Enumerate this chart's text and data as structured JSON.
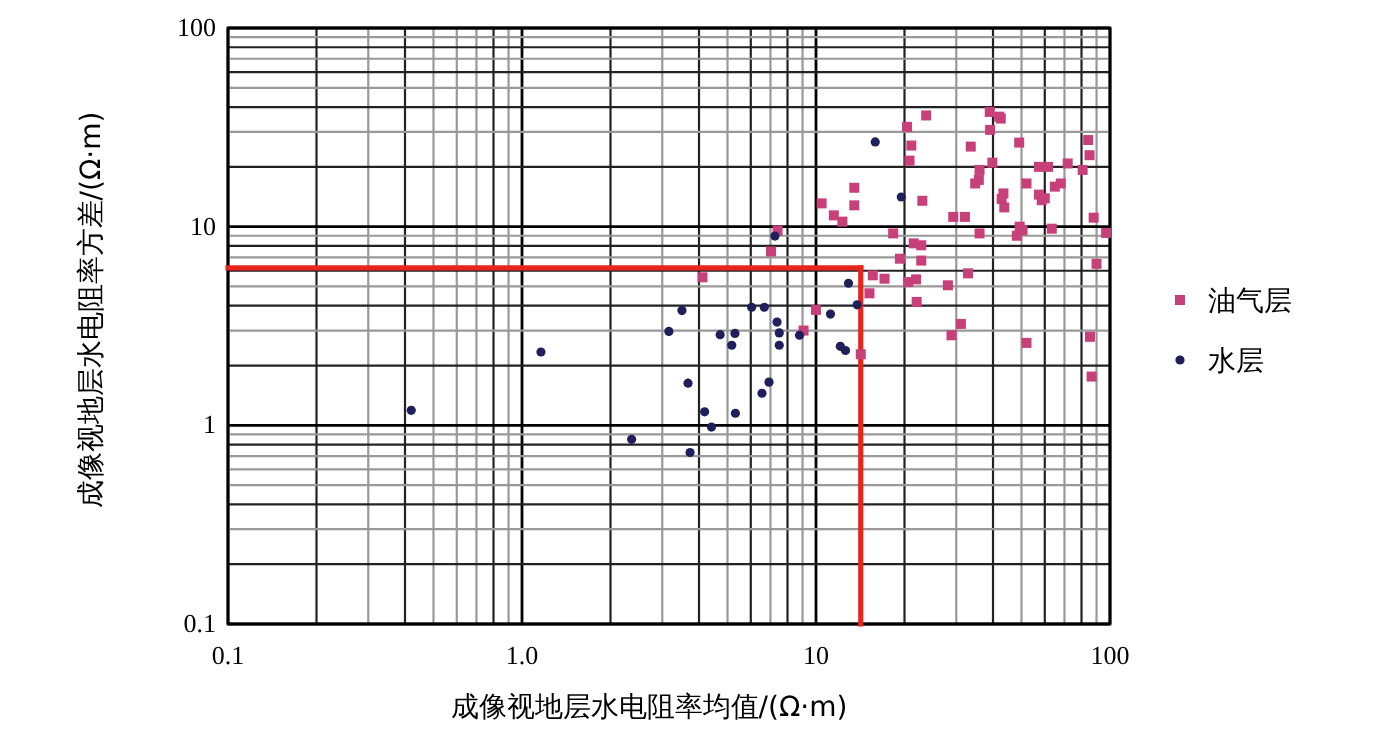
{
  "chart_data": {
    "type": "scatter",
    "xlabel": "成像视地层水电阻率均值/(Ω·m)",
    "ylabel": "成像视地层水电阻率方差/(Ω·m)",
    "log": "xy",
    "grid": true,
    "legend": "right",
    "xlim": [
      0.1,
      100
    ],
    "ylim": [
      0.1,
      100
    ],
    "xticks": [
      0.1,
      {
        "value": 1,
        "label": "1.0"
      },
      10,
      100
    ],
    "yticks": [
      0.1,
      1,
      10,
      100
    ],
    "ref_lines": [
      {
        "axis": "y",
        "value": 6.2,
        "color": "#e8251a"
      },
      {
        "axis": "x",
        "value": 14.2,
        "color": "#e8251a"
      }
    ],
    "series": [
      {
        "name": "油气层",
        "color": "#c8407a",
        "marker": "square",
        "x": [
          4.11,
          7.03,
          7.4,
          9.07,
          10,
          10.45,
          11.5,
          12.3,
          13.5,
          13.5,
          14.2,
          15.2,
          15.6,
          17.1,
          18.3,
          19.3,
          20.4,
          20.8,
          21.1,
          20.6,
          21.5,
          21.9,
          22,
          22.8,
          22.8,
          23,
          23.7,
          28.1,
          28.9,
          29.3,
          31.1,
          32.1,
          32.9,
          33.6,
          34.8,
          35.8,
          36,
          36,
          39,
          39.1,
          39.8,
          42,
          42.5,
          42.8,
          43.4,
          43.7,
          49.1,
          48.2,
          49.3,
          50.4,
          52,
          52,
          57.3,
          57.3,
          58.6,
          60,
          61.6,
          63.4,
          64.9,
          68,
          71.8,
          80.7,
          84.3,
          85.2,
          85.5,
          86.6,
          88,
          97,
          90
        ],
        "values": [
          5.56,
          7.5,
          9.55,
          3.0,
          3.81,
          13.1,
          11.4,
          10.6,
          12.8,
          15.7,
          2.28,
          4.62,
          5.69,
          5.47,
          9.25,
          6.9,
          31.8,
          21.5,
          25.6,
          5.26,
          8.24,
          5.43,
          4.18,
          6.75,
          8.06,
          13.5,
          36.3,
          5.07,
          2.84,
          11.2,
          3.24,
          11.2,
          5.82,
          25.3,
          16.5,
          17.2,
          9.25,
          19.3,
          37.8,
          30.7,
          21,
          35.8,
          35,
          13.8,
          14.7,
          12.5,
          26.5,
          9,
          10,
          9.6,
          16.5,
          2.6,
          20,
          14.5,
          13.6,
          13.9,
          20,
          9.77,
          15.9,
          16.5,
          20.8,
          19.3,
          27.3,
          22.9,
          2.79,
          1.76,
          11.1,
          9.3,
          6.5
        ]
      },
      {
        "name": "水层",
        "color": "#1f1f5c",
        "marker": "circle",
        "x": [
          0.42,
          1.16,
          2.36,
          3.16,
          3.5,
          3.67,
          3.73,
          4.18,
          4.41,
          4.72,
          5.17,
          5.3,
          5.32,
          6.04,
          6.55,
          6.67,
          6.92,
          7.25,
          7.37,
          7.5,
          7.5,
          8.79,
          11.2,
          12.1,
          12.6,
          12.9,
          13.8,
          15.9,
          19.5
        ],
        "values": [
          1.19,
          2.34,
          0.85,
          2.97,
          3.78,
          1.63,
          0.73,
          1.17,
          0.98,
          2.86,
          2.53,
          2.9,
          1.15,
          3.93,
          1.45,
          3.93,
          1.65,
          8.97,
          3.31,
          2.92,
          2.53,
          2.84,
          3.63,
          2.5,
          2.38,
          5.19,
          4.04,
          26.7,
          14.1
        ]
      }
    ]
  }
}
